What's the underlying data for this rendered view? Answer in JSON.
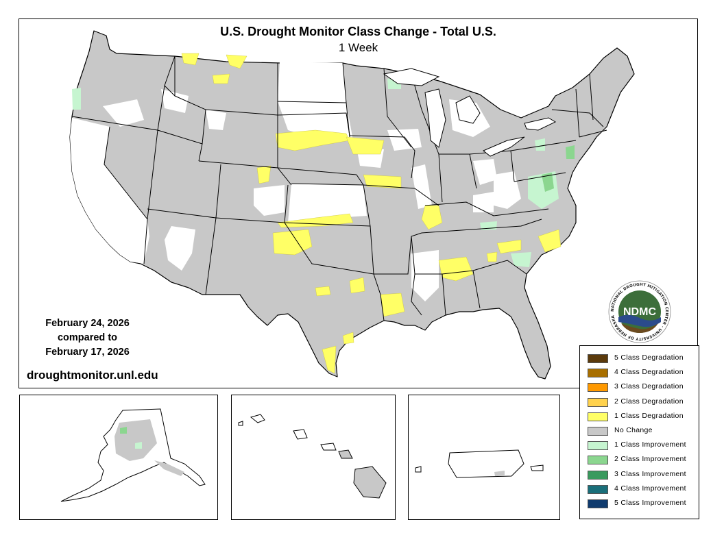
{
  "title": "U.S. Drought Monitor Class Change - Total U.S.",
  "subtitle": "1 Week",
  "dates": {
    "current": "February 24, 2026",
    "compared_to": "compared to",
    "previous": "February 17, 2026"
  },
  "website": "droughtmonitor.unl.edu",
  "logo": {
    "text": "NDMC",
    "ring_text": "NATIONAL DROUGHT MITIGATION CENTER · UNIVERSITY OF NEBRASKA"
  },
  "legend": [
    {
      "label": "5 Class Degradation",
      "color": "#5b3a0c"
    },
    {
      "label": "4 Class Degradation",
      "color": "#a86f00"
    },
    {
      "label": "3 Class Degradation",
      "color": "#ff9900"
    },
    {
      "label": "2 Class Degradation",
      "color": "#ffd24d"
    },
    {
      "label": "1 Class Degradation",
      "color": "#ffff66"
    },
    {
      "label": "No Change",
      "color": "#c8c8c8"
    },
    {
      "label": "1 Class Improvement",
      "color": "#c6f5d0"
    },
    {
      "label": "2 Class Improvement",
      "color": "#8bd68f"
    },
    {
      "label": "3 Class Improvement",
      "color": "#3a9a5e"
    },
    {
      "label": "4 Class Improvement",
      "color": "#1a6f7a"
    },
    {
      "label": "5 Class Improvement",
      "color": "#103b6e"
    }
  ],
  "colors": {
    "no_change": "#c8c8c8",
    "one_class_degradation": "#ffff66",
    "one_class_improvement": "#c6f5d0",
    "two_class_improvement": "#8bd68f",
    "logo_green": "#3c6e3a",
    "logo_blue": "#2b4b8c",
    "logo_brown": "#6b4a1f"
  }
}
